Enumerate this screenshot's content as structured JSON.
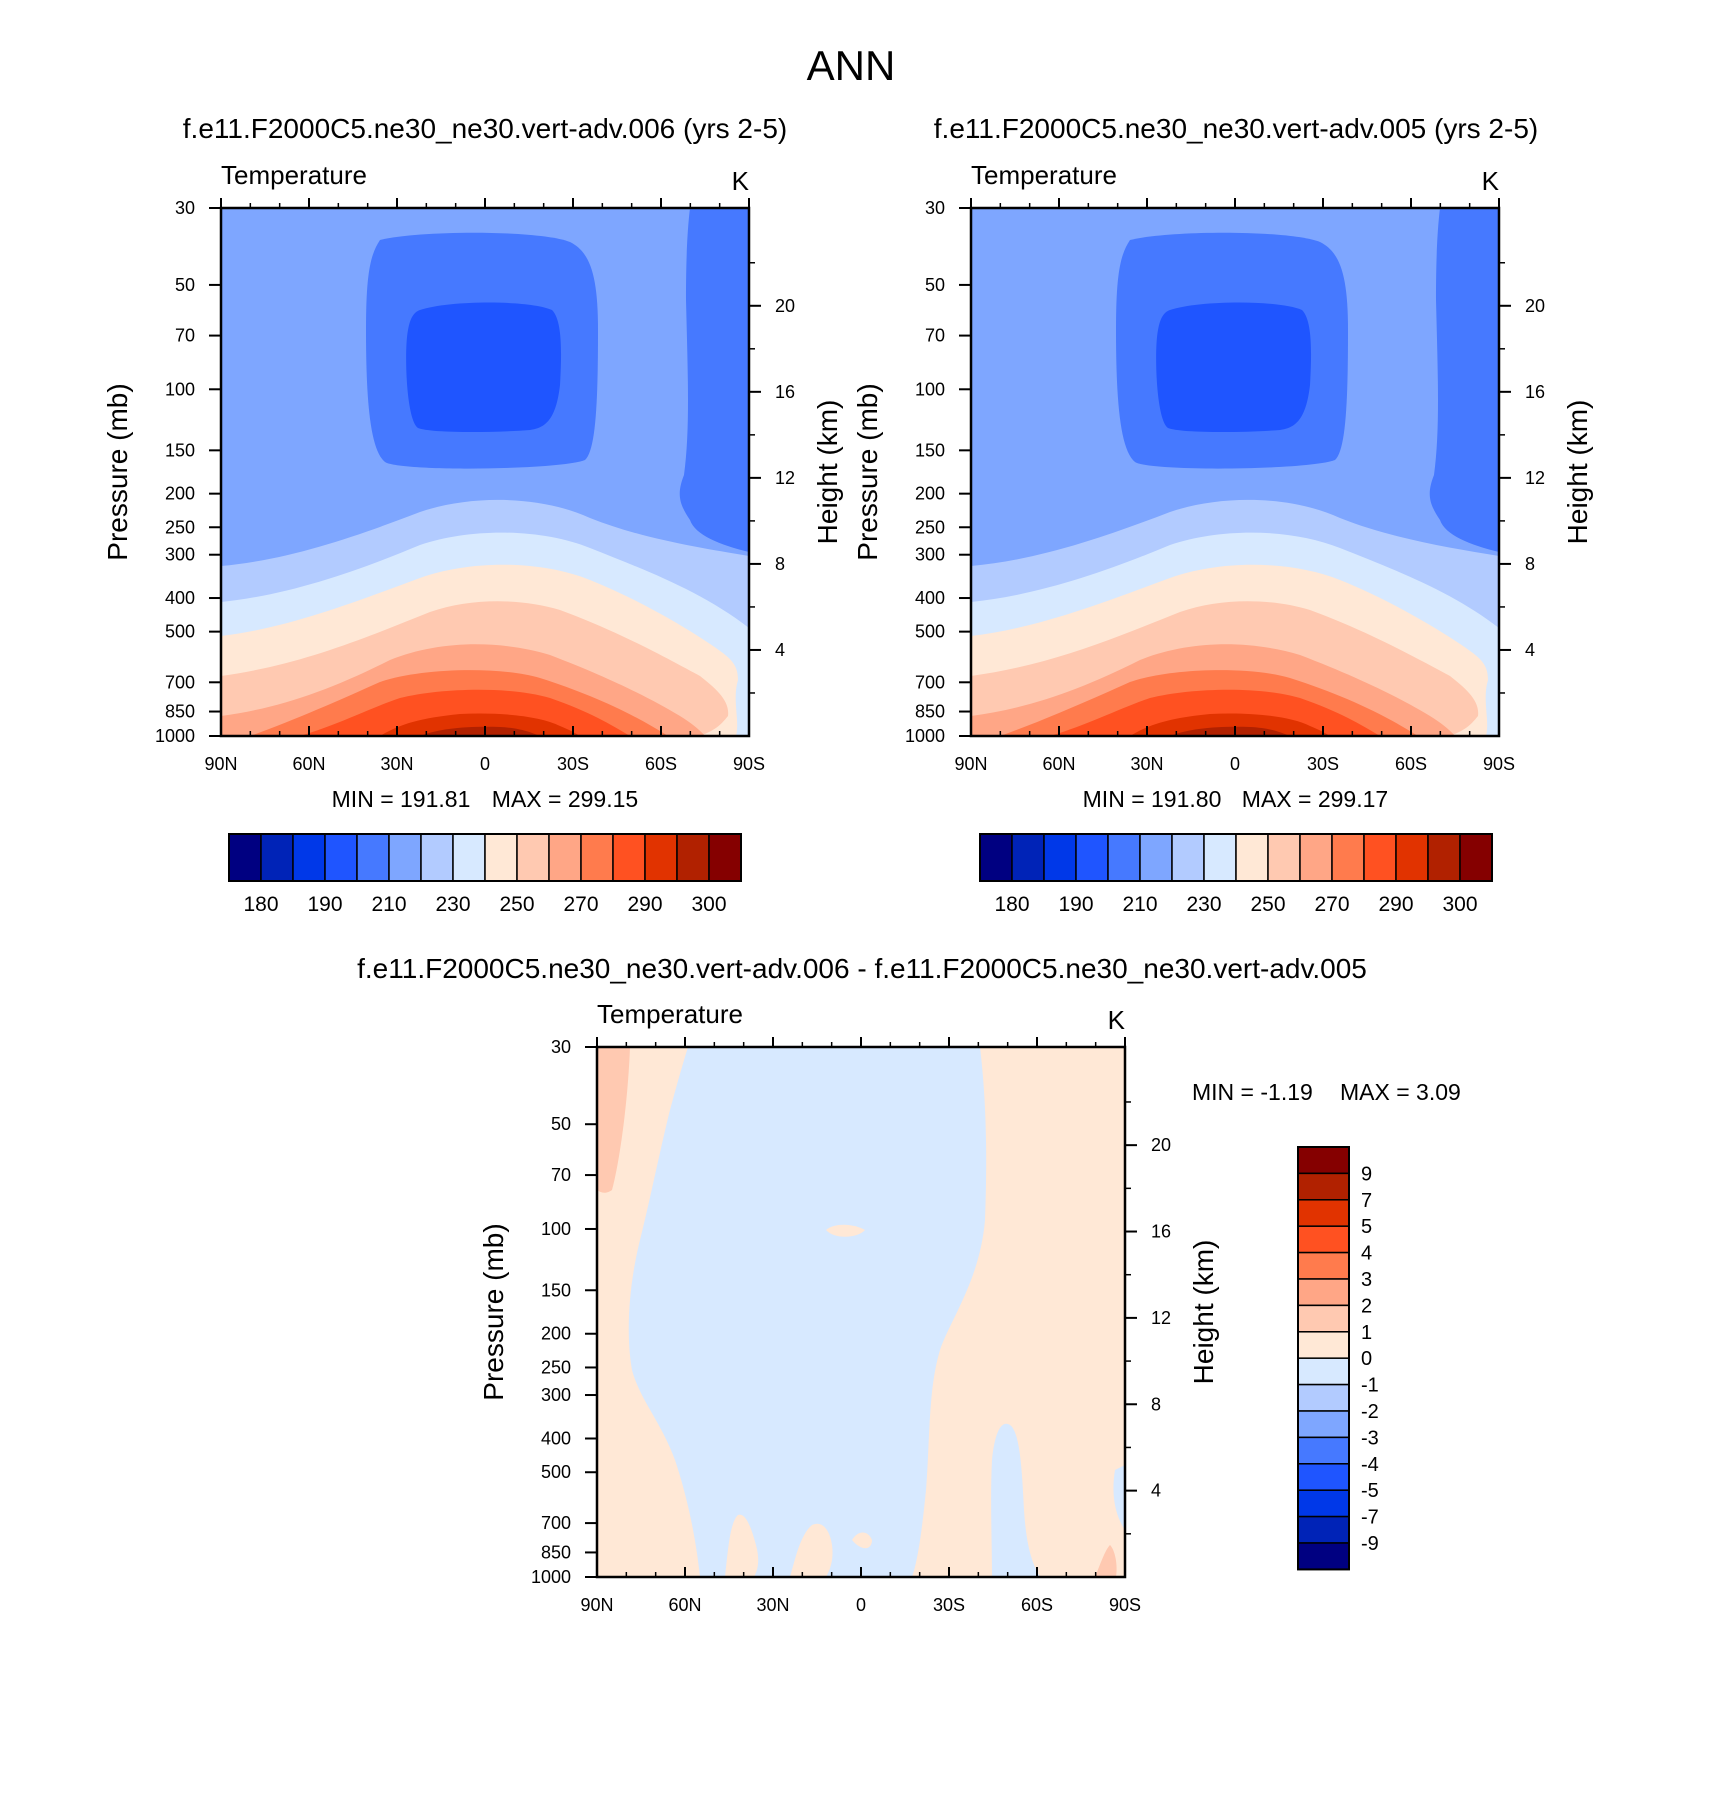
{
  "page": {
    "title": "ANN"
  },
  "colors": {
    "temperature_scale": [
      "#000081",
      "#0023b7",
      "#0038e8",
      "#1f55ff",
      "#4679ff",
      "#7ea6ff",
      "#b2cbff",
      "#d7e9ff",
      "#ffe8d6",
      "#ffc9b1",
      "#ffa686",
      "#ff7b4d",
      "#ff5121",
      "#e13300",
      "#b12100",
      "#850000"
    ],
    "difference_scale": [
      "#000081",
      "#0023b7",
      "#0038e8",
      "#1f55ff",
      "#4679ff",
      "#7ea6ff",
      "#b2cbff",
      "#d7e9ff",
      "#ffe8d6",
      "#ffc9b1",
      "#ffa686",
      "#ff7b4d",
      "#ff5121",
      "#e13300",
      "#b12100",
      "#850000"
    ]
  },
  "chart_data": [
    {
      "type": "contour",
      "title": "f.e11.F2000C5.ne30_ne30.vert-adv.006 (yrs 2-5)",
      "field": "Temperature",
      "units": "K",
      "xlabel": "",
      "ylabel": "Pressure (mb)",
      "ylabel_right": "Height (km)",
      "x_ticks": [
        "90N",
        "60N",
        "30N",
        "0",
        "30S",
        "60S",
        "90S"
      ],
      "y_ticks": [
        "30",
        "50",
        "70",
        "100",
        "150",
        "200",
        "250",
        "300",
        "400",
        "500",
        "700",
        "850",
        "1000"
      ],
      "y_right_ticks": [
        "4",
        "8",
        "12",
        "16",
        "20"
      ],
      "min_label": "MIN = 191.81",
      "max_label": "MAX = 299.15",
      "colorbar_labels": [
        "180",
        "190",
        "210",
        "230",
        "250",
        "270",
        "290",
        "300"
      ]
    },
    {
      "type": "contour",
      "title": "f.e11.F2000C5.ne30_ne30.vert-adv.005 (yrs 2-5)",
      "field": "Temperature",
      "units": "K",
      "xlabel": "",
      "ylabel": "Pressure (mb)",
      "ylabel_right": "Height (km)",
      "x_ticks": [
        "90N",
        "60N",
        "30N",
        "0",
        "30S",
        "60S",
        "90S"
      ],
      "y_ticks": [
        "30",
        "50",
        "70",
        "100",
        "150",
        "200",
        "250",
        "300",
        "400",
        "500",
        "700",
        "850",
        "1000"
      ],
      "y_right_ticks": [
        "4",
        "8",
        "12",
        "16",
        "20"
      ],
      "min_label": "MIN = 191.80",
      "max_label": "MAX = 299.17",
      "colorbar_labels": [
        "180",
        "190",
        "210",
        "230",
        "250",
        "270",
        "290",
        "300"
      ]
    },
    {
      "type": "contour",
      "title": "f.e11.F2000C5.ne30_ne30.vert-adv.006 - f.e11.F2000C5.ne30_ne30.vert-adv.005",
      "field": "Temperature",
      "units": "K",
      "xlabel": "",
      "ylabel": "Pressure (mb)",
      "ylabel_right": "Height (km)",
      "x_ticks": [
        "90N",
        "60N",
        "30N",
        "0",
        "30S",
        "60S",
        "90S"
      ],
      "y_ticks": [
        "30",
        "50",
        "70",
        "100",
        "150",
        "200",
        "250",
        "300",
        "400",
        "500",
        "700",
        "850",
        "1000"
      ],
      "y_right_ticks": [
        "4",
        "8",
        "12",
        "16",
        "20"
      ],
      "min_label": "MIN =  -1.19",
      "max_label": "MAX =   3.09",
      "colorbar_labels": [
        "9",
        "7",
        "5",
        "4",
        "3",
        "2",
        "1",
        "0",
        "-1",
        "-2",
        "-3",
        "-4",
        "-5",
        "-7",
        "-9"
      ]
    }
  ]
}
